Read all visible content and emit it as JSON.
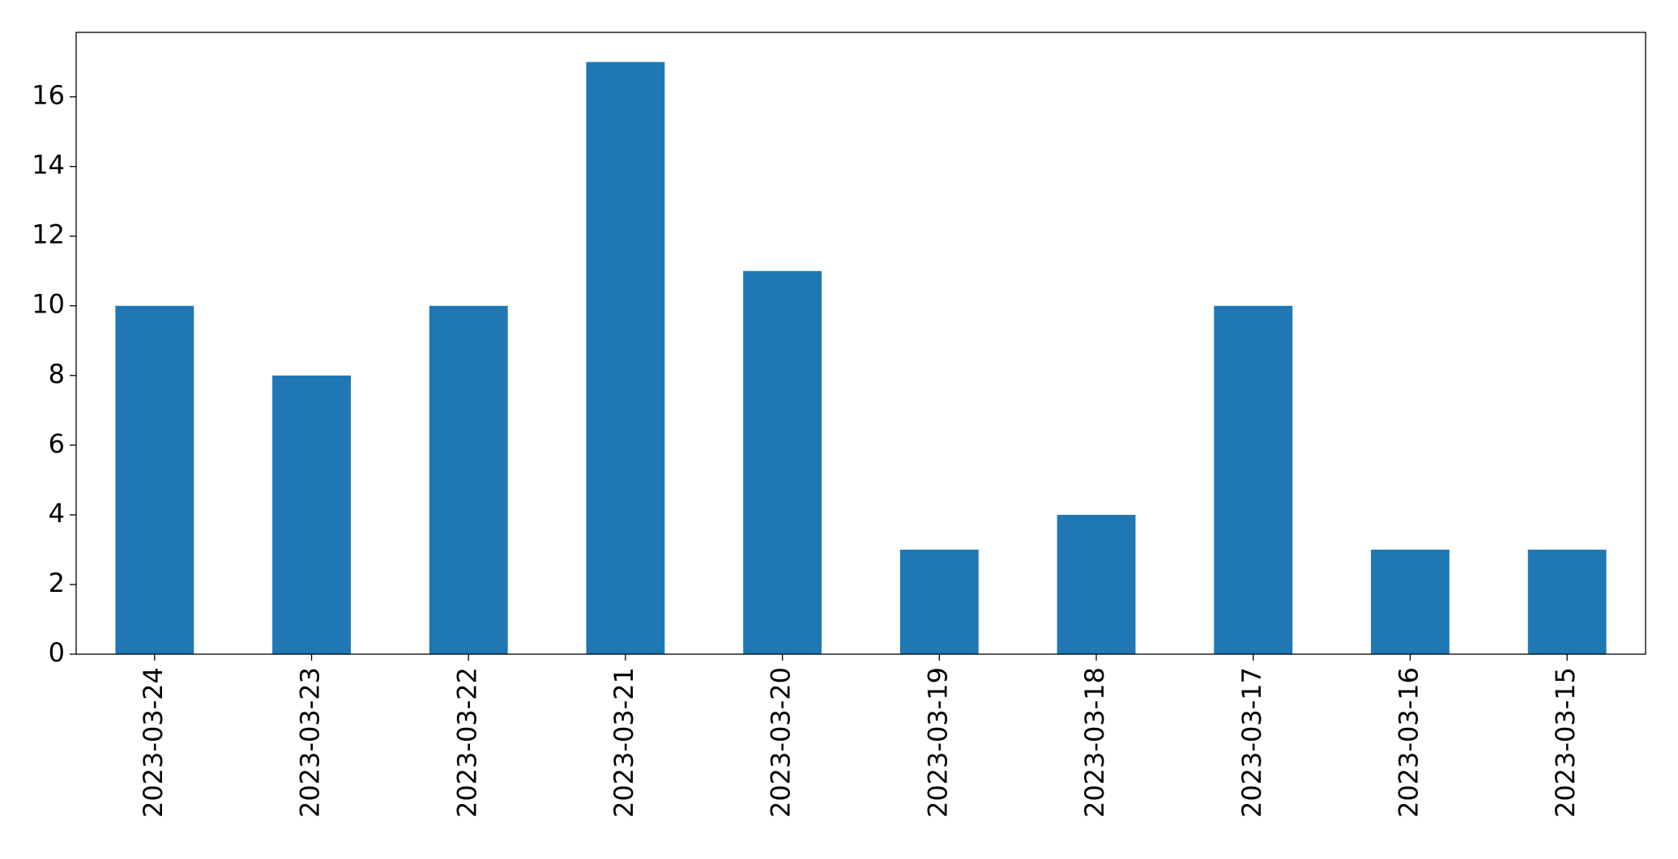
{
  "chart_data": {
    "type": "bar",
    "categories": [
      "2023-03-24",
      "2023-03-23",
      "2023-03-22",
      "2023-03-21",
      "2023-03-20",
      "2023-03-19",
      "2023-03-18",
      "2023-03-17",
      "2023-03-16",
      "2023-03-15"
    ],
    "values": [
      10,
      8,
      10,
      17,
      11,
      3,
      4,
      10,
      3,
      3
    ],
    "color": "#1f77b4",
    "ylim": [
      0,
      17.85
    ],
    "yticks": [
      0,
      2,
      4,
      6,
      8,
      10,
      12,
      14,
      16
    ],
    "grid": false
  }
}
